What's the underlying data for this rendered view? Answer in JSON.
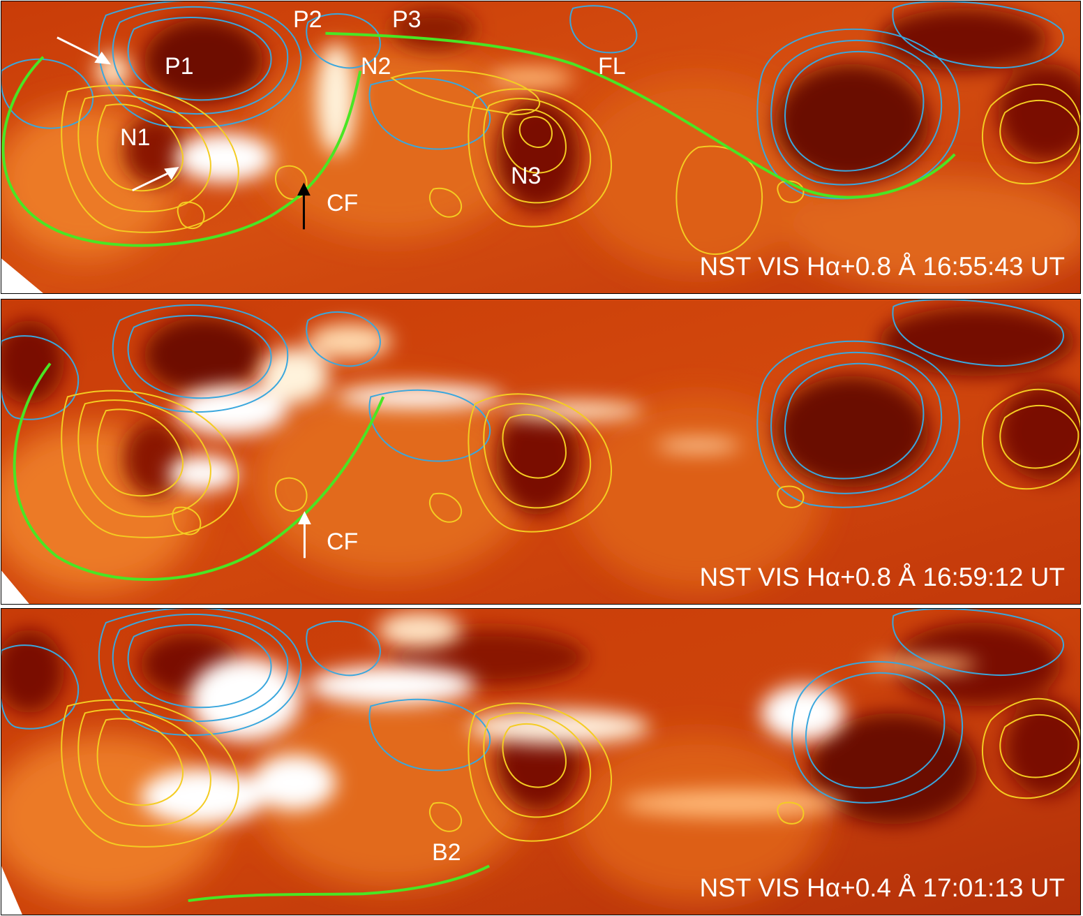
{
  "colors": {
    "background_dark": "#7a0f00",
    "background_mid": "#d2470b",
    "background_light": "#f08a30",
    "bright": "#ffffff",
    "positive_contour": "#3aa7dd",
    "negative_contour": "#f4cc22",
    "green_curve": "#49e624",
    "annotation_white": "#ffffff",
    "annotation_black": "#000000"
  },
  "panels": [
    {
      "caption": "NST VIS Hα+0.8 Å  16:55:43 UT",
      "labels": {
        "P1": "P1",
        "P2": "P2",
        "P3": "P3",
        "N1": "N1",
        "N2": "N2",
        "N3": "N3",
        "FL": "FL",
        "CF": "CF"
      }
    },
    {
      "caption": "NST VIS Hα+0.8 Å  16:59:12 UT",
      "labels": {
        "CF": "CF"
      }
    },
    {
      "caption": "NST VIS Hα+0.4 Å  17:01:13 UT",
      "labels": {
        "B2": "B2"
      }
    }
  ]
}
